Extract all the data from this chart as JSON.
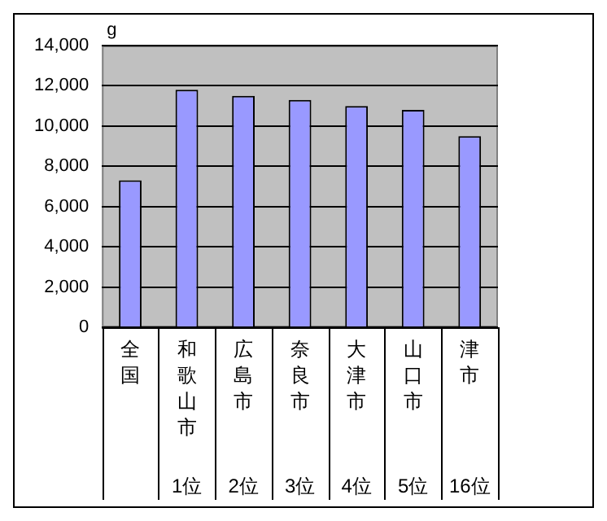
{
  "chart_data": {
    "type": "bar",
    "ylabel": "g",
    "categories": [
      "全国",
      "和歌山市",
      "広島市",
      "奈良市",
      "大津市",
      "山口市",
      "津市"
    ],
    "values": [
      7300,
      11800,
      11500,
      11300,
      11000,
      10800,
      9500
    ],
    "color": "#9999ff",
    "ylim": [
      0,
      14000
    ],
    "yticks": [
      {
        "value": 0,
        "label": "0"
      },
      {
        "value": 2000,
        "label": "2,000"
      },
      {
        "value": 4000,
        "label": "4,000"
      },
      {
        "value": 6000,
        "label": "6,000"
      },
      {
        "value": 8000,
        "label": "8,000"
      },
      {
        "value": 10000,
        "label": "10,000"
      },
      {
        "value": 12000,
        "label": "12,000"
      },
      {
        "value": 14000,
        "label": "14,000"
      }
    ],
    "grid": "y",
    "legend": false,
    "annotations": [
      "1位",
      "2位",
      "3位",
      "4位",
      "5位",
      "16位"
    ]
  }
}
